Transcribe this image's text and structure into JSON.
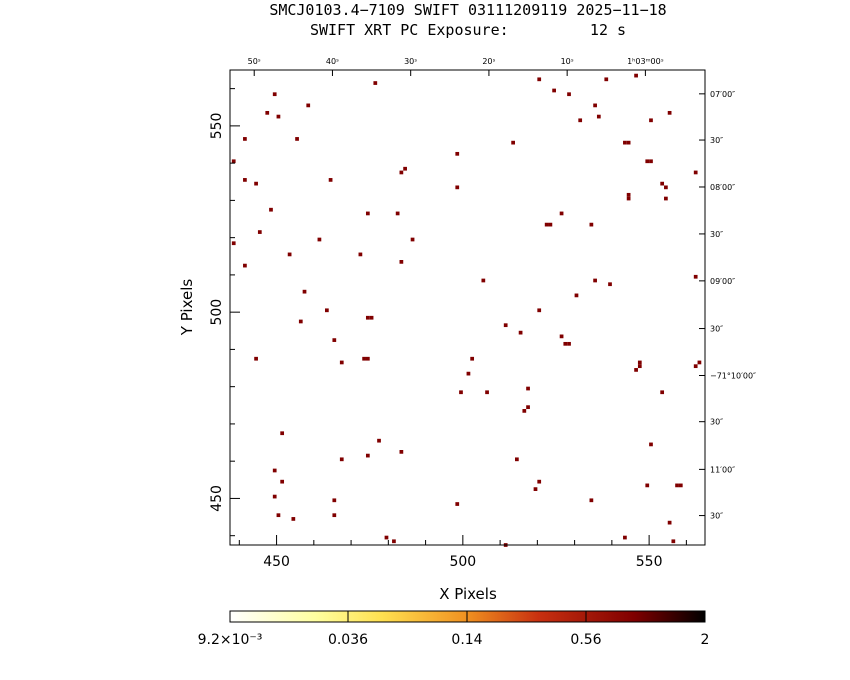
{
  "header": {
    "line1": "SMCJ0103.4−7109 SWIFT 03111209119 2025−11−18",
    "line2": "SWIFT XRT PC Exposure:         12 s"
  },
  "chart_data": {
    "type": "scatter",
    "xlabel": "X Pixels",
    "ylabel": "Y Pixels",
    "xlim": [
      437.5,
      565
    ],
    "ylim": [
      437.5,
      565
    ],
    "x_ticks": [
      {
        "v": 450,
        "label": "450"
      },
      {
        "v": 500,
        "label": "500"
      },
      {
        "v": 550,
        "label": "550"
      }
    ],
    "y_ticks": [
      {
        "v": 450,
        "label": "450"
      },
      {
        "v": 500,
        "label": "500"
      },
      {
        "v": 550,
        "label": "550"
      }
    ],
    "ra_ticks": [
      {
        "v": 444,
        "label": "50ˢ"
      },
      {
        "v": 465,
        "label": "40ˢ"
      },
      {
        "v": 486,
        "label": "30ˢ"
      },
      {
        "v": 507,
        "label": "20ˢ"
      },
      {
        "v": 528,
        "label": "10ˢ"
      },
      {
        "v": 549,
        "label": "1ʰ03ᵐ00ˢ"
      }
    ],
    "dec_ticks": [
      {
        "v": 558.6,
        "label": "07′00″"
      },
      {
        "v": 546.2,
        "label": "30″"
      },
      {
        "v": 533.6,
        "label": "08′00″"
      },
      {
        "v": 521.0,
        "label": "30″"
      },
      {
        "v": 508.4,
        "label": "09′00″"
      },
      {
        "v": 495.6,
        "label": "30″"
      },
      {
        "v": 483.0,
        "label": "−71°10′00″"
      },
      {
        "v": 470.6,
        "label": "30″"
      },
      {
        "v": 457.8,
        "label": "11′00″"
      },
      {
        "v": 445.4,
        "label": "30″"
      }
    ],
    "points": [
      [
        449.5,
        558.5
      ],
      [
        447.5,
        553.5
      ],
      [
        450.5,
        552.5
      ],
      [
        458.5,
        555.5
      ],
      [
        476.5,
        561.5
      ],
      [
        520.5,
        562.5
      ],
      [
        524.5,
        559.5
      ],
      [
        538.5,
        562.5
      ],
      [
        546.5,
        563.5
      ],
      [
        528.5,
        558.5
      ],
      [
        535.5,
        555.5
      ],
      [
        531.5,
        551.5
      ],
      [
        536.5,
        552.5
      ],
      [
        550.5,
        551.5
      ],
      [
        555.5,
        553.5
      ],
      [
        441.5,
        546.5
      ],
      [
        455.5,
        546.5
      ],
      [
        513.5,
        545.5
      ],
      [
        543.5,
        545.5
      ],
      [
        544.5,
        545.5
      ],
      [
        498.5,
        542.5
      ],
      [
        438.5,
        540.5
      ],
      [
        549.5,
        540.5
      ],
      [
        550.5,
        540.5
      ],
      [
        483.5,
        537.5
      ],
      [
        484.5,
        538.5
      ],
      [
        562.5,
        537.5
      ],
      [
        441.5,
        535.5
      ],
      [
        444.5,
        534.5
      ],
      [
        464.5,
        535.5
      ],
      [
        498.5,
        533.5
      ],
      [
        553.5,
        534.5
      ],
      [
        554.5,
        533.5
      ],
      [
        544.5,
        531.5
      ],
      [
        544.5,
        530.5
      ],
      [
        554.5,
        530.5
      ],
      [
        448.5,
        527.5
      ],
      [
        474.5,
        526.5
      ],
      [
        482.5,
        526.5
      ],
      [
        526.5,
        526.5
      ],
      [
        522.5,
        523.5
      ],
      [
        523.5,
        523.5
      ],
      [
        534.5,
        523.5
      ],
      [
        445.5,
        521.5
      ],
      [
        438.5,
        518.5
      ],
      [
        461.5,
        519.5
      ],
      [
        486.5,
        519.5
      ],
      [
        453.5,
        515.5
      ],
      [
        472.5,
        515.5
      ],
      [
        483.5,
        513.5
      ],
      [
        441.5,
        512.5
      ],
      [
        505.5,
        508.5
      ],
      [
        535.5,
        508.5
      ],
      [
        539.5,
        507.5
      ],
      [
        562.5,
        509.5
      ],
      [
        457.5,
        505.5
      ],
      [
        530.5,
        504.5
      ],
      [
        463.5,
        500.5
      ],
      [
        520.5,
        500.5
      ],
      [
        474.5,
        498.5
      ],
      [
        475.5,
        498.5
      ],
      [
        456.5,
        497.5
      ],
      [
        511.5,
        496.5
      ],
      [
        515.5,
        494.5
      ],
      [
        526.5,
        493.5
      ],
      [
        465.5,
        492.5
      ],
      [
        527.5,
        491.5
      ],
      [
        528.5,
        491.5
      ],
      [
        444.5,
        487.5
      ],
      [
        473.5,
        487.5
      ],
      [
        474.5,
        487.5
      ],
      [
        467.5,
        486.5
      ],
      [
        502.5,
        487.5
      ],
      [
        547.5,
        486.5
      ],
      [
        547.5,
        485.5
      ],
      [
        562.5,
        485.5
      ],
      [
        563.5,
        486.5
      ],
      [
        501.5,
        483.5
      ],
      [
        546.5,
        484.5
      ],
      [
        517.5,
        479.5
      ],
      [
        499.5,
        478.5
      ],
      [
        506.5,
        478.5
      ],
      [
        553.5,
        478.5
      ],
      [
        517.5,
        474.5
      ],
      [
        516.5,
        473.5
      ],
      [
        451.5,
        467.5
      ],
      [
        477.5,
        465.5
      ],
      [
        550.5,
        464.5
      ],
      [
        474.5,
        461.5
      ],
      [
        483.5,
        462.5
      ],
      [
        467.5,
        460.5
      ],
      [
        514.5,
        460.5
      ],
      [
        449.5,
        457.5
      ],
      [
        451.5,
        454.5
      ],
      [
        520.5,
        454.5
      ],
      [
        519.5,
        452.5
      ],
      [
        549.5,
        453.5
      ],
      [
        557.5,
        453.5
      ],
      [
        558.5,
        453.5
      ],
      [
        449.5,
        450.5
      ],
      [
        465.5,
        449.5
      ],
      [
        498.5,
        448.5
      ],
      [
        534.5,
        449.5
      ],
      [
        450.5,
        445.5
      ],
      [
        454.5,
        444.5
      ],
      [
        465.5,
        445.5
      ],
      [
        555.5,
        443.5
      ],
      [
        479.5,
        439.5
      ],
      [
        481.5,
        438.5
      ],
      [
        543.5,
        439.5
      ],
      [
        511.5,
        437.5
      ],
      [
        556.5,
        438.5
      ]
    ]
  },
  "colorbar": {
    "labels": [
      "9.2×10⁻³",
      "0.036",
      "0.14",
      "0.56",
      "2"
    ],
    "stops": [
      "#ffffff",
      "#ffff80",
      "#ffcc40",
      "#f08020",
      "#c03010",
      "#800000",
      "#000000"
    ]
  },
  "colors": {
    "pixel": "#800000",
    "frame": "#000000"
  }
}
